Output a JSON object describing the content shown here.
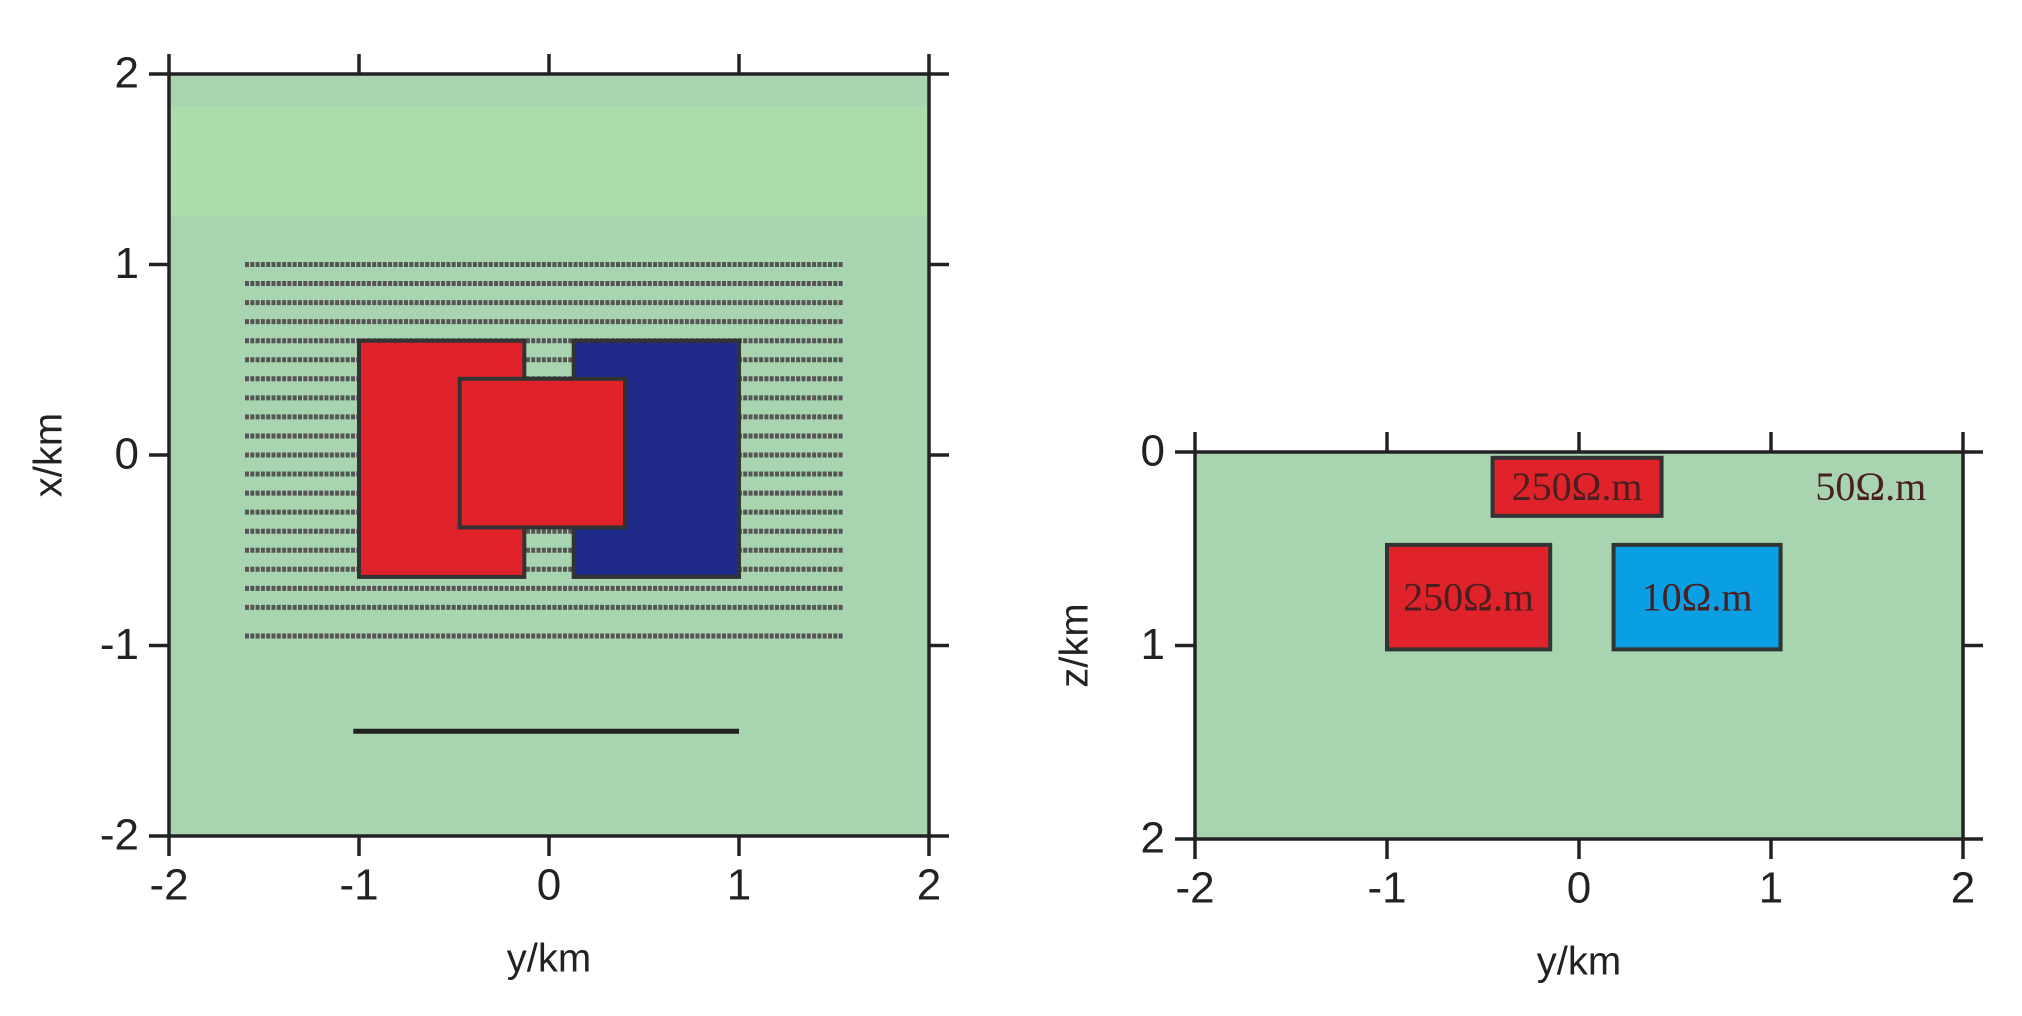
{
  "chart_data": [
    {
      "type": "model",
      "xlabel": "y/km",
      "ylabel": "x/km",
      "xlim": [
        -2,
        2
      ],
      "ylim": [
        -2,
        2
      ],
      "xticks": [
        -2,
        -1,
        0,
        1,
        2
      ],
      "yticks": [
        -2,
        -1,
        0,
        1,
        2
      ],
      "background": "#a8d5af",
      "band": {
        "y": [
          1.25,
          1.83
        ],
        "color": "#abdcab"
      },
      "stations": {
        "x": [
          1.0,
          0.9,
          0.8,
          0.7,
          0.6,
          0.5,
          0.4,
          0.3,
          0.2,
          0.1,
          0.0,
          -0.1,
          -0.2,
          -0.3,
          -0.4,
          -0.5,
          -0.6,
          -0.7,
          -0.8,
          -0.95
        ],
        "y_range": [
          -1.6,
          1.55
        ]
      },
      "profile": {
        "x": [
          -1.03,
          1.0
        ],
        "y": -1.45
      },
      "blocks": [
        {
          "color": "#e0222b",
          "x": [
            -1.0,
            -0.13
          ],
          "y": [
            -0.64,
            0.6
          ]
        },
        {
          "color": "#1f2a8a",
          "x": [
            0.13,
            1.0
          ],
          "y": [
            -0.64,
            0.6
          ]
        },
        {
          "color": "#e0222b",
          "x": [
            -0.47,
            0.4
          ],
          "y": [
            -0.38,
            0.4
          ]
        }
      ]
    },
    {
      "type": "model",
      "xlabel": "y/km",
      "ylabel": "z/km",
      "xlim": [
        -2,
        2
      ],
      "ylim": [
        2,
        0
      ],
      "xticks": [
        -2,
        -1,
        0,
        1,
        2
      ],
      "yticks": [
        0,
        1,
        2
      ],
      "background": "#a8d5af",
      "annotation": "50Ω.m",
      "blocks": [
        {
          "color": "#e0222b",
          "x": [
            -0.45,
            0.43
          ],
          "y": [
            0.03,
            0.33
          ],
          "label": "250Ω.m"
        },
        {
          "color": "#e0222b",
          "x": [
            -1.0,
            -0.15
          ],
          "y": [
            0.48,
            1.02
          ],
          "label": "250Ω.m"
        },
        {
          "color": "#0a9ee3",
          "x": [
            0.18,
            1.05
          ],
          "y": [
            0.48,
            1.02
          ],
          "label": "10Ω.m"
        }
      ]
    }
  ]
}
